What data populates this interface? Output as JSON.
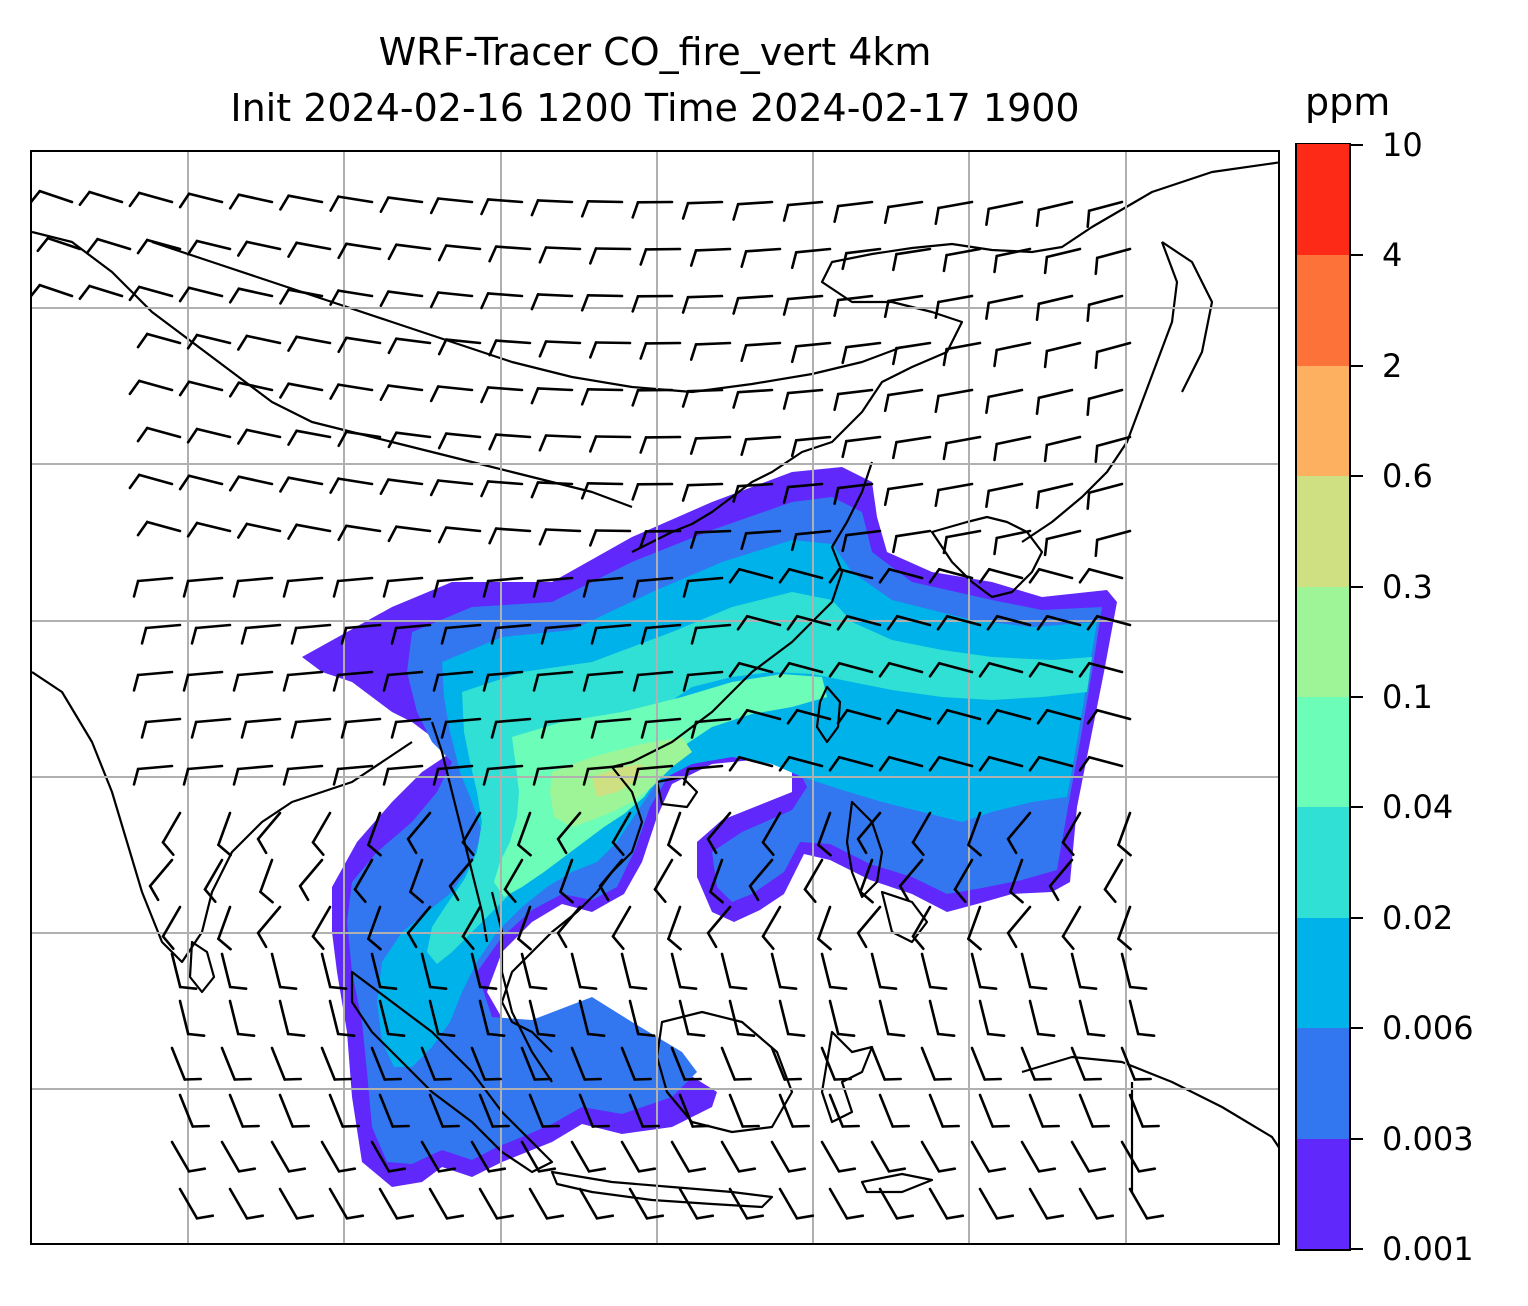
{
  "title": {
    "line1": "WRF-Tracer CO_fire_vert 4km",
    "line2": "Init 2024-02-16 1200 Time 2024-02-17 1900"
  },
  "colorbar": {
    "unit": "ppm",
    "ticks": [
      "0.001",
      "0.003",
      "0.006",
      "0.02",
      "0.04",
      "0.1",
      "0.3",
      "0.6",
      "2",
      "4",
      "10"
    ],
    "colors": [
      "#6028fa",
      "#3276f0",
      "#00b2ea",
      "#30e0d4",
      "#6cfdb8",
      "#9ef597",
      "#cfe083",
      "#fdb060",
      "#fd7239",
      "#fd2a18"
    ]
  },
  "map": {
    "gridline_color": "#b0b0b0",
    "coastline_color": "#000000",
    "wind_barb_color": "#000000"
  }
}
